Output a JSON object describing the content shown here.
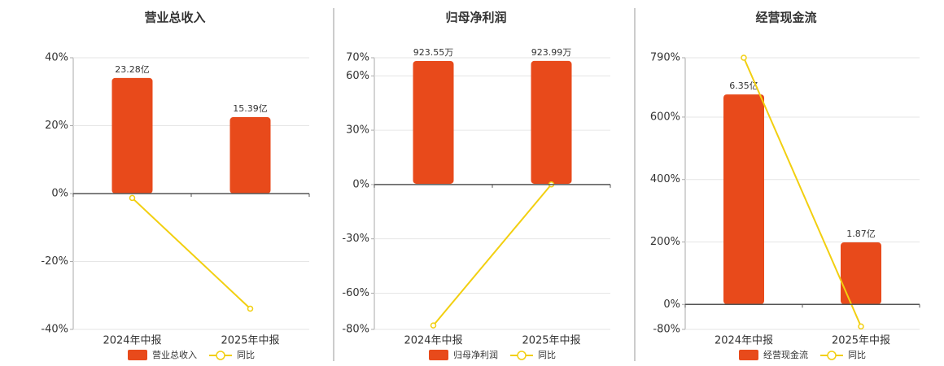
{
  "chart_data": [
    {
      "type": "combo",
      "title": "营业总收入",
      "categories": [
        "2024年中报",
        "2025年中报"
      ],
      "series": [
        {
          "name": "营业总收入",
          "color": "#e84a1b",
          "values": [
            23.28,
            15.39
          ],
          "value_labels": [
            "23.28亿",
            "15.39亿"
          ],
          "axis": "y2"
        },
        {
          "name": "同比",
          "color": "#f2cf10",
          "values": [
            -1.3,
            -33.9
          ]
        }
      ],
      "ylim": [
        -40,
        40
      ],
      "yticks": [
        {
          "value": 40,
          "label": "40%"
        },
        {
          "value": 20,
          "label": "20%"
        },
        {
          "value": 0,
          "label": "0%"
        },
        {
          "value": -20,
          "label": "-20%"
        },
        {
          "value": -40,
          "label": "-40%"
        }
      ],
      "y2lim": [
        -27.35,
        27.35
      ],
      "grid": true
    },
    {
      "type": "combo",
      "title": "归母净利润",
      "categories": [
        "2024年中报",
        "2025年中报"
      ],
      "series": [
        {
          "name": "归母净利润",
          "color": "#e84a1b",
          "values": [
            923.55,
            923.99
          ],
          "value_labels": [
            "923.55万",
            "923.99万"
          ],
          "axis": "y2"
        },
        {
          "name": "同比",
          "color": "#f2cf10",
          "values": [
            -77.8,
            0.05
          ]
        }
      ],
      "ylim": [
        -80,
        70
      ],
      "yticks": [
        {
          "value": 70,
          "label": "70%"
        },
        {
          "value": 60,
          "label": "60%"
        },
        {
          "value": 30,
          "label": "30%"
        },
        {
          "value": 0,
          "label": "0%"
        },
        {
          "value": -30,
          "label": "-30%"
        },
        {
          "value": -60,
          "label": "-60%"
        },
        {
          "value": -80,
          "label": "-80%"
        }
      ],
      "y2lim": [
        -1095,
        948
      ],
      "grid": true
    },
    {
      "type": "combo",
      "title": "经营现金流",
      "categories": [
        "2024年中报",
        "2025年中报"
      ],
      "series": [
        {
          "name": "经营现金流",
          "color": "#e84a1b",
          "values": [
            6.35,
            1.87
          ],
          "value_labels": [
            "6.35亿",
            "1.87亿"
          ],
          "axis": "y2"
        },
        {
          "name": "同比",
          "color": "#f2cf10",
          "values": [
            790,
            -70.6
          ]
        }
      ],
      "ylim": [
        -80,
        790
      ],
      "yticks": [
        {
          "value": 790,
          "label": "790%"
        },
        {
          "value": 600,
          "label": "600%"
        },
        {
          "value": 400,
          "label": "400%"
        },
        {
          "value": 200,
          "label": "200%"
        },
        {
          "value": 0,
          "label": "0%"
        },
        {
          "value": -80,
          "label": "-80%"
        }
      ],
      "y2lim": [
        -0.763,
        7.46
      ],
      "grid": true
    }
  ]
}
